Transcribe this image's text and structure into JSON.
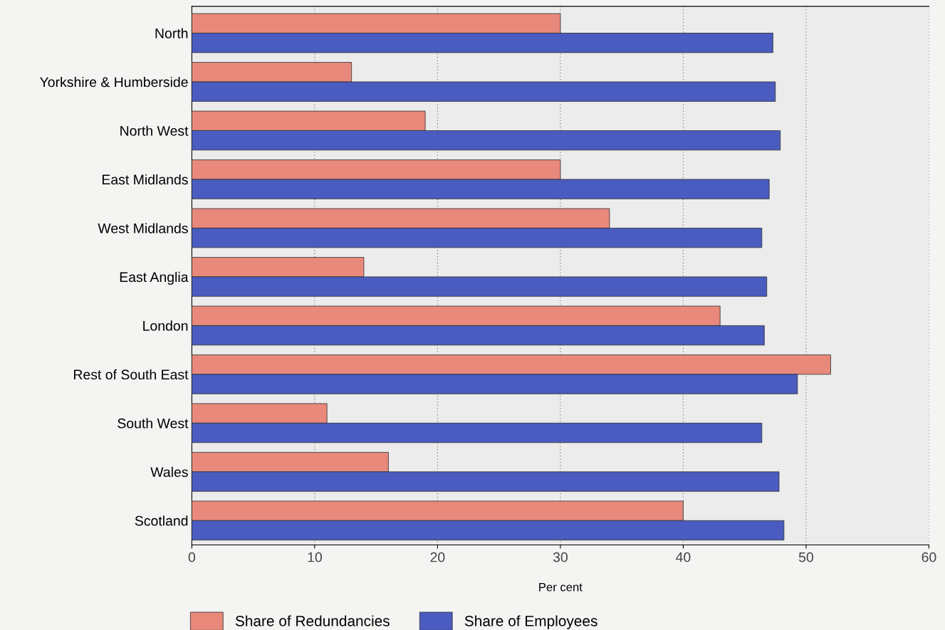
{
  "chart_data": {
    "type": "bar",
    "orientation": "horizontal",
    "xlabel": "Per cent",
    "categories": [
      "North",
      "Yorkshire & Humberside",
      "North West",
      "East Midlands",
      "West Midlands",
      "East Anglia",
      "London",
      "Rest of South East",
      "South West",
      "Wales",
      "Scotland"
    ],
    "series": [
      {
        "name": "Share of Redundancies",
        "color": "#e8897c",
        "values": [
          30,
          13,
          19,
          30,
          34,
          14,
          43,
          52,
          11,
          16,
          40
        ]
      },
      {
        "name": "Share of Employees",
        "color": "#4a5cc0",
        "values": [
          47.3,
          47.5,
          47.9,
          47.0,
          46.4,
          46.8,
          46.6,
          49.3,
          46.4,
          47.8,
          48.2
        ]
      }
    ],
    "xlim": [
      0,
      60
    ],
    "xticks": [
      0,
      10,
      20,
      30,
      40,
      50,
      60
    ],
    "grid": "x",
    "legend": "bottom"
  }
}
